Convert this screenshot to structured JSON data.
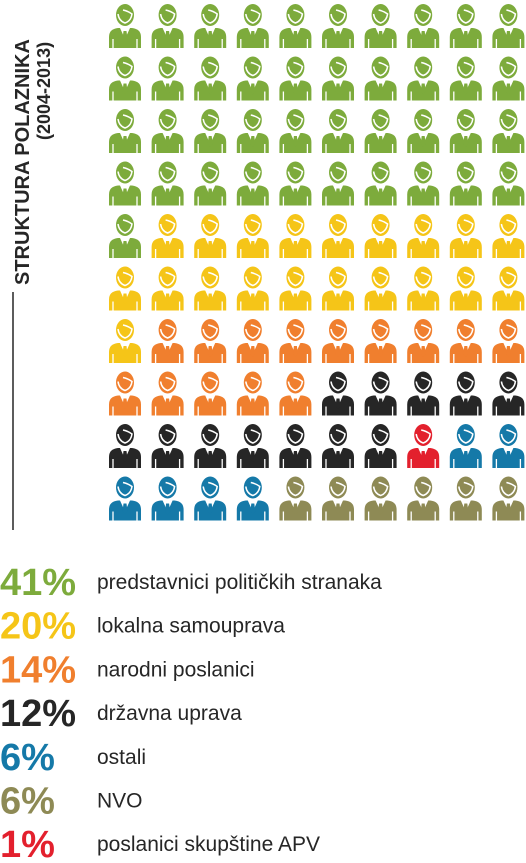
{
  "chart_data": {
    "type": "waffle",
    "title": "STRUKTURA POLAZNIKA",
    "subtitle": "(2004-2013)",
    "series": [
      {
        "name": "predstavnici političkih stranaka",
        "color": "#7dab3c",
        "values": [
          41
        ],
        "value_labels": [
          "41%"
        ]
      },
      {
        "name": "lokalna samouprava",
        "color": "#f5c518",
        "values": [
          20
        ],
        "value_labels": [
          "20%"
        ]
      },
      {
        "name": "narodni poslanici",
        "color": "#f07f2e",
        "values": [
          14
        ],
        "value_labels": [
          "14%"
        ]
      },
      {
        "name": "državna uprava",
        "color": "#262626",
        "values": [
          12
        ],
        "value_labels": [
          "12%"
        ]
      },
      {
        "name": "poslanici skupštine APV",
        "color": "#e3202d",
        "values": [
          1
        ],
        "value_labels": [
          "1%"
        ]
      },
      {
        "name": "ostali",
        "color": "#1579a8",
        "values": [
          6
        ],
        "value_labels": [
          "6%"
        ]
      },
      {
        "name": "NVO",
        "color": "#8e8a55",
        "values": [
          6
        ],
        "value_labels": [
          "6%"
        ]
      }
    ]
  }
}
